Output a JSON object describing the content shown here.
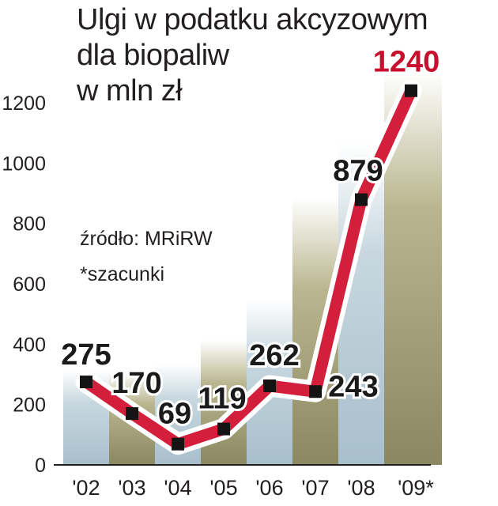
{
  "chart_data": {
    "type": "line",
    "title": [
      "Ulgi w podatku akcyzowym",
      "dla biopaliw",
      "w mln zł"
    ],
    "categories": [
      "'02",
      "'03",
      "'04",
      "'05",
      "'06",
      "'07",
      "'08",
      "'09*"
    ],
    "values": [
      275,
      170,
      69,
      119,
      262,
      243,
      879,
      1240
    ],
    "value_labels": [
      "275",
      "170",
      "69",
      "119",
      "262",
      "243",
      "879",
      "1240"
    ],
    "highlight_index": 7,
    "yticks": [
      0,
      200,
      400,
      600,
      800,
      1000,
      1200
    ],
    "ylim": [
      0,
      1300
    ],
    "grid": false,
    "source_note": "źródło: MRiRW",
    "footnote": "*szacunki",
    "colors": {
      "line": "#d31f3c",
      "line_outline": "#ffffff",
      "marker": "#141414",
      "highlight_label": "#c8102e",
      "band_olive": "#8b8760",
      "band_blue": "#a8bfcc",
      "text": "#231f20"
    }
  }
}
